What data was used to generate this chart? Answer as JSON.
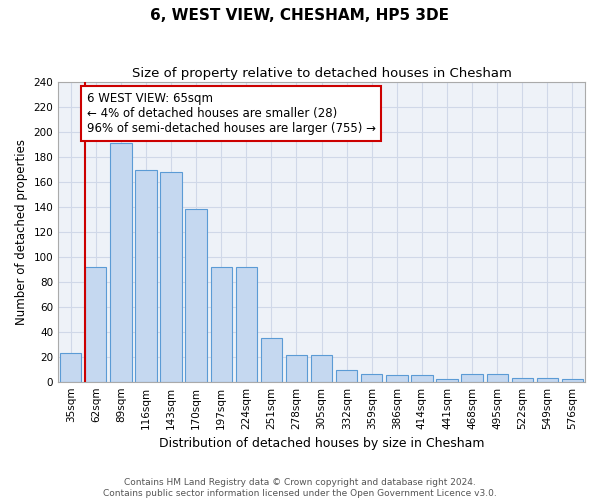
{
  "title": "6, WEST VIEW, CHESHAM, HP5 3DE",
  "subtitle": "Size of property relative to detached houses in Chesham",
  "xlabel": "Distribution of detached houses by size in Chesham",
  "ylabel": "Number of detached properties",
  "categories": [
    "35sqm",
    "62sqm",
    "89sqm",
    "116sqm",
    "143sqm",
    "170sqm",
    "197sqm",
    "224sqm",
    "251sqm",
    "278sqm",
    "305sqm",
    "332sqm",
    "359sqm",
    "386sqm",
    "414sqm",
    "441sqm",
    "468sqm",
    "495sqm",
    "522sqm",
    "549sqm",
    "576sqm"
  ],
  "values": [
    23,
    92,
    191,
    169,
    168,
    138,
    92,
    92,
    35,
    21,
    21,
    9,
    6,
    5,
    5,
    2,
    6,
    6,
    3,
    3,
    2
  ],
  "bar_color": "#c5d8f0",
  "bar_edge_color": "#5b9bd5",
  "grid_color": "#d0d8e8",
  "background_color": "#eef2f8",
  "annotation_box_text": "6 WEST VIEW: 65sqm\n← 4% of detached houses are smaller (28)\n96% of semi-detached houses are larger (755) →",
  "annotation_box_color": "#ffffff",
  "annotation_box_edge_color": "#cc0000",
  "vline_color": "#cc0000",
  "ylim": [
    0,
    240
  ],
  "yticks": [
    0,
    20,
    40,
    60,
    80,
    100,
    120,
    140,
    160,
    180,
    200,
    220,
    240
  ],
  "footer_text": "Contains HM Land Registry data © Crown copyright and database right 2024.\nContains public sector information licensed under the Open Government Licence v3.0.",
  "title_fontsize": 11,
  "subtitle_fontsize": 9.5,
  "xlabel_fontsize": 9,
  "ylabel_fontsize": 8.5,
  "tick_fontsize": 7.5,
  "annotation_fontsize": 8.5,
  "footer_fontsize": 6.5
}
